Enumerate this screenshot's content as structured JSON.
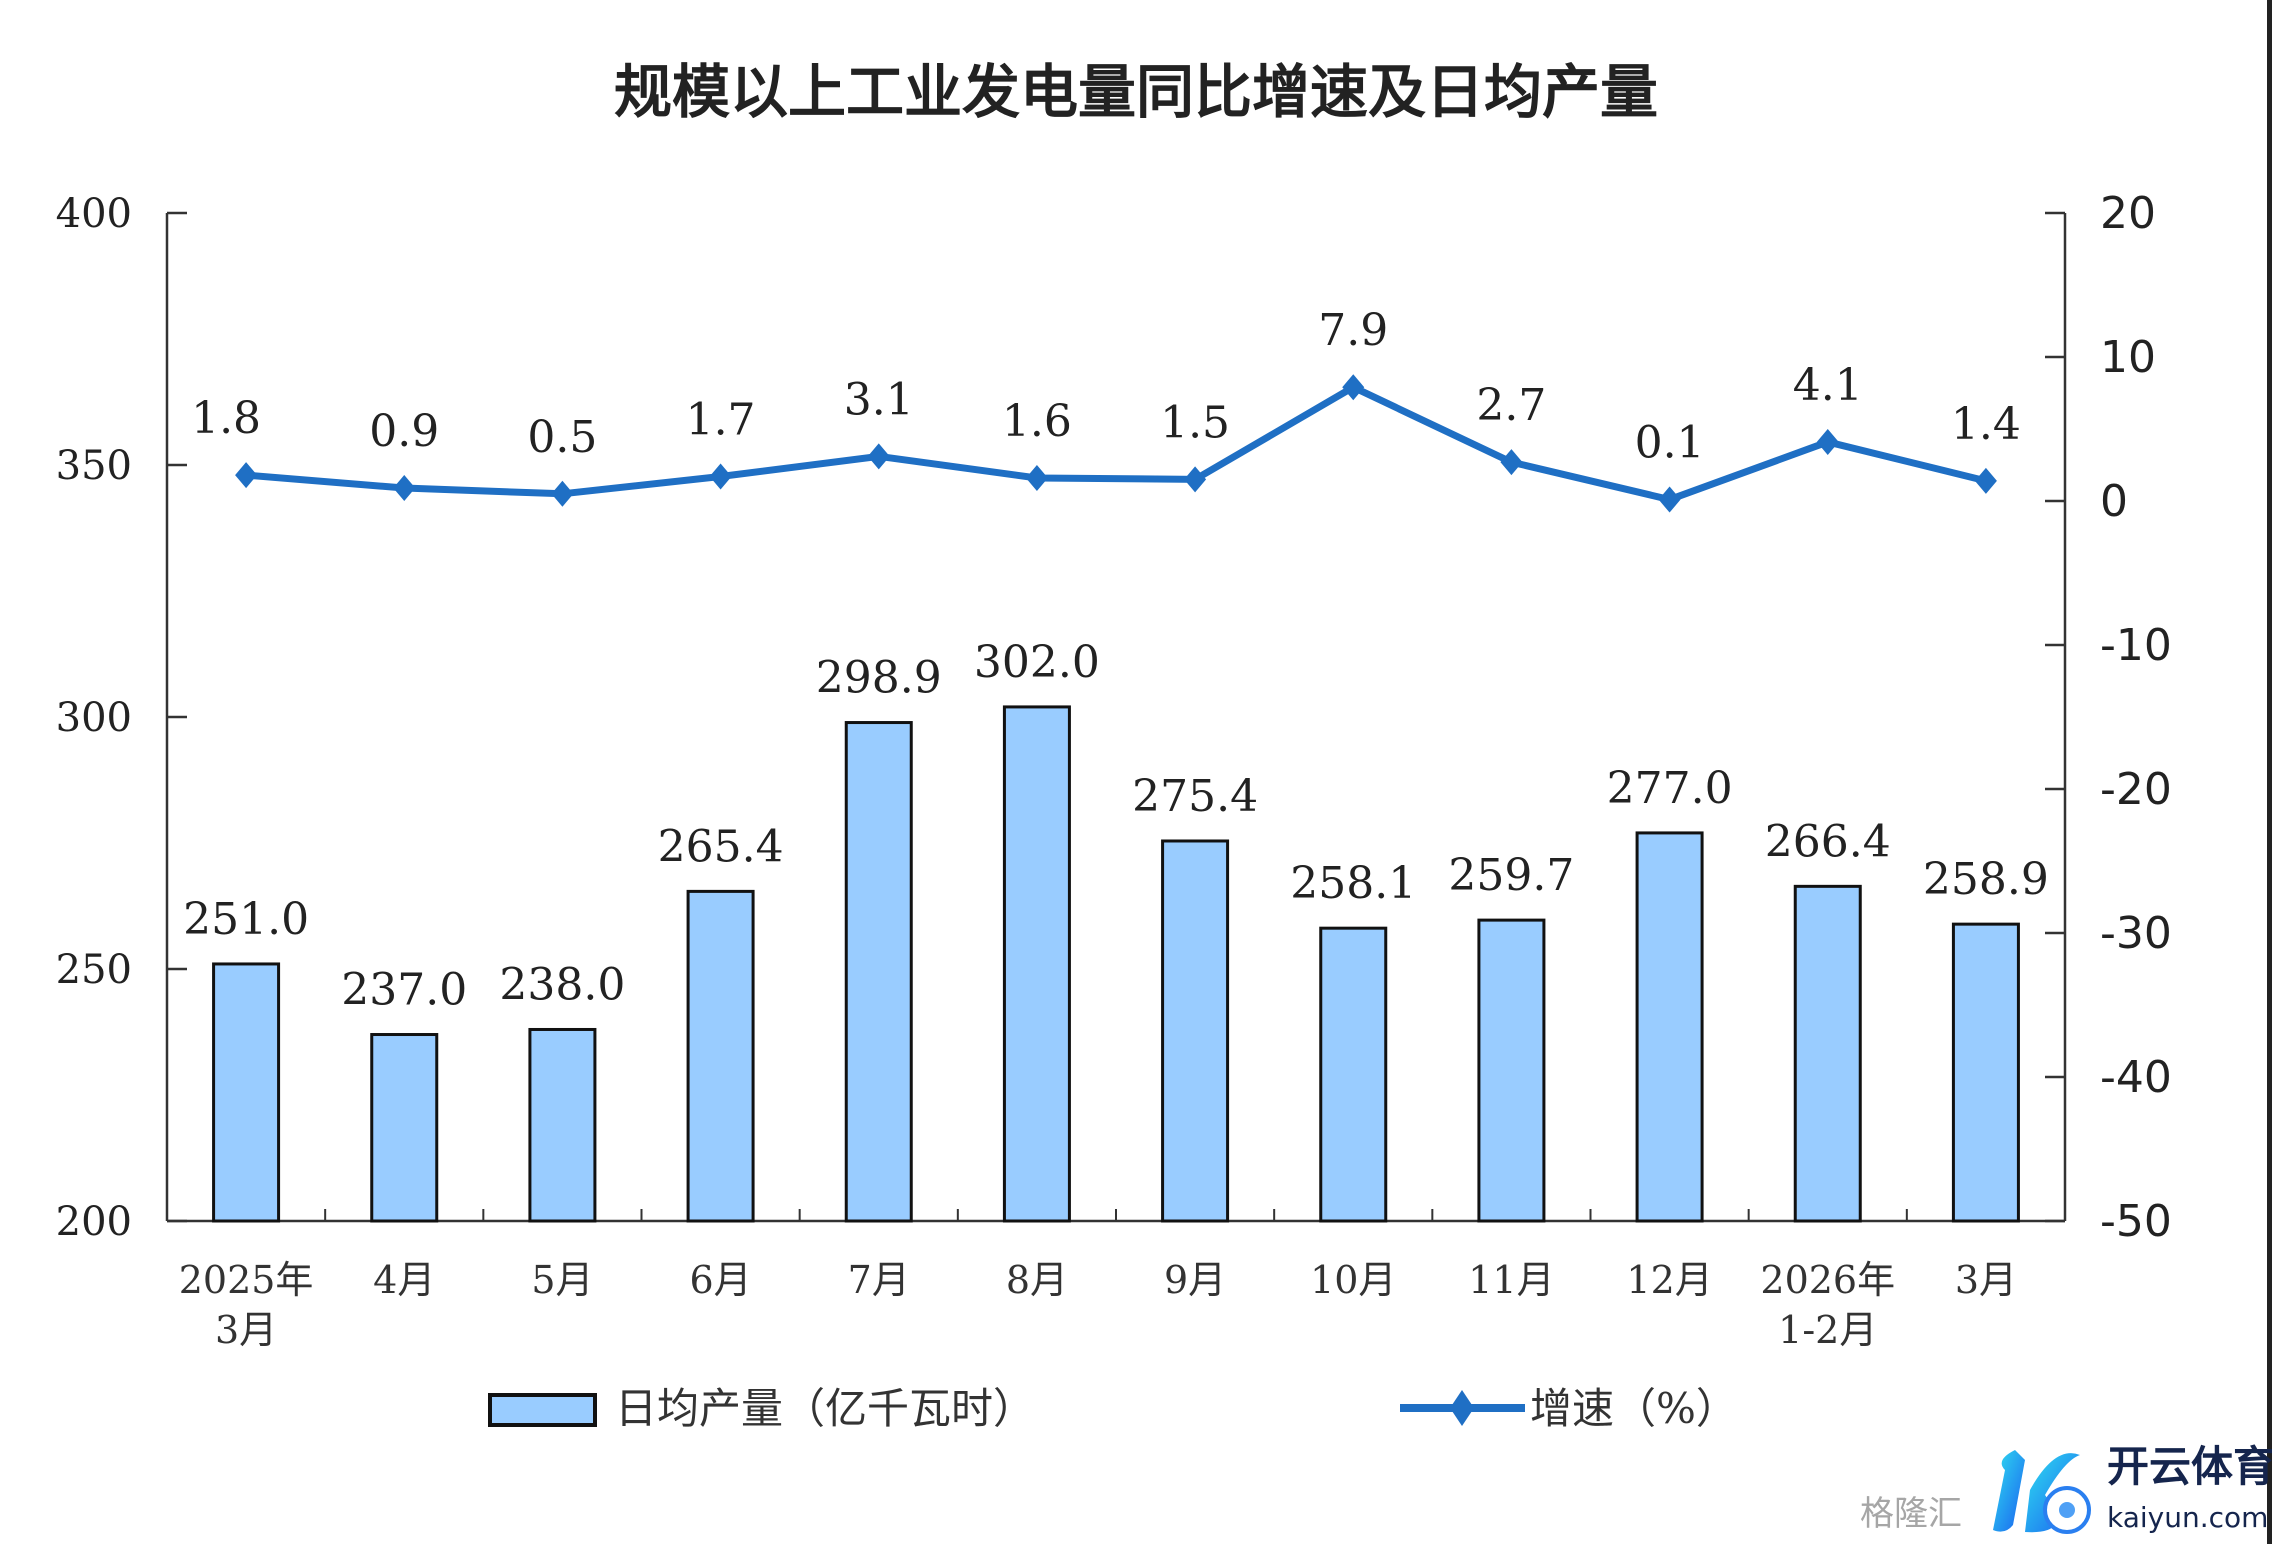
{
  "chart_data": {
    "type": "bar+line",
    "title": "规模以上工业发电量同比增速及日均产量",
    "categories": [
      [
        "2025年",
        "3月"
      ],
      [
        "4月"
      ],
      [
        "5月"
      ],
      [
        "6月"
      ],
      [
        "7月"
      ],
      [
        "8月"
      ],
      [
        "9月"
      ],
      [
        "10月"
      ],
      [
        "11月"
      ],
      [
        "12月"
      ],
      [
        "2026年",
        "1-2月"
      ],
      [
        "3月"
      ]
    ],
    "series": [
      {
        "name": "日均产量（亿千瓦时）",
        "type": "bar",
        "axis": "left",
        "color": "#99ccff",
        "values": [
          251.0,
          237.0,
          238.0,
          265.4,
          298.9,
          302.0,
          275.4,
          258.1,
          259.7,
          277.0,
          266.4,
          258.9
        ],
        "labels": [
          "251.0",
          "237.0",
          "238.0",
          "265.4",
          "298.9",
          "302.0",
          "275.4",
          "258.1",
          "259.7",
          "277.0",
          "266.4",
          "258.9"
        ]
      },
      {
        "name": "增速（%）",
        "type": "line",
        "axis": "right",
        "color": "#1f6fc4",
        "values": [
          1.8,
          0.9,
          0.5,
          1.7,
          3.1,
          1.6,
          1.5,
          7.9,
          2.7,
          0.1,
          4.1,
          1.4
        ],
        "labels": [
          "1.8",
          "0.9",
          "0.5",
          "1.7",
          "3.1",
          "1.6",
          "1.5",
          "7.9",
          "2.7",
          "0.1",
          "4.1",
          "1.4"
        ]
      }
    ],
    "y_left": {
      "lim": [
        200,
        400
      ],
      "ticks": [
        "200",
        "250",
        "300",
        "350",
        "400"
      ]
    },
    "y_right": {
      "lim": [
        -50,
        20
      ],
      "ticks": [
        "-50",
        "-40",
        "-30",
        "-20",
        "-10",
        "0",
        "10",
        "20"
      ]
    },
    "grid": false,
    "legend_position": "bottom"
  },
  "watermark": {
    "brand_cn": "开云体育",
    "brand_en": "kaiyun.com",
    "source": "格隆汇"
  }
}
